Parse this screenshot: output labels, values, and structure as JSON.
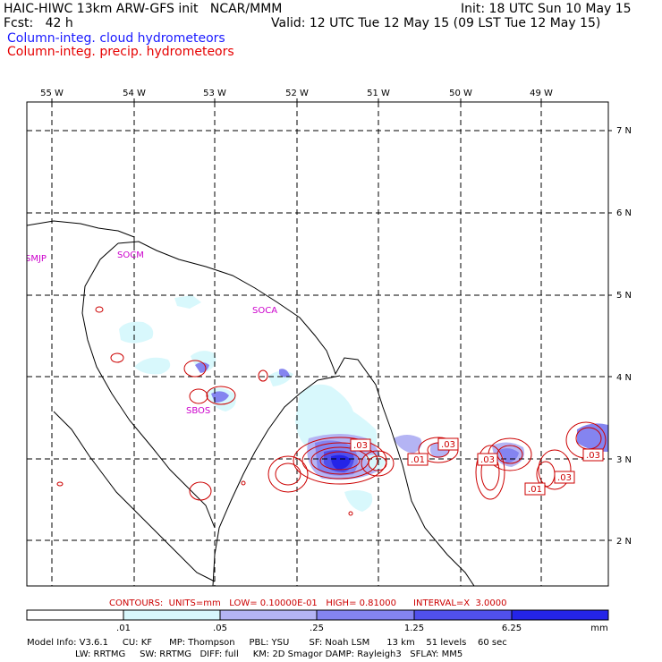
{
  "header": {
    "model_title": "HAIC-HIWC 13km ARW-GFS init   NCAR/MMM",
    "init": "Init: 18 UTC Sun 10 May 15",
    "fcst": "Fcst:   42 h",
    "valid": "Valid: 12 UTC Tue 12 May 15 (09 LST Tue 12 May 15)",
    "field_cloud": "Column-integ. cloud hydrometeors",
    "field_precip": "Column-integ. precip. hydrometeors",
    "colors": {
      "cloud": "#1a1aff",
      "precip": "#e60000"
    }
  },
  "map": {
    "lon_labels": [
      "55 W",
      "54 W",
      "53 W",
      "52 W",
      "51 W",
      "50 W",
      "49 W"
    ],
    "lat_labels": [
      "7 N",
      "6 N",
      "5 N",
      "4 N",
      "3 N",
      "2 N"
    ],
    "stations": [
      "SMJP",
      "SOCM",
      "SOCA",
      "SBOS"
    ],
    "contour_labels": [
      ".03",
      ".01",
      ".03",
      ".03",
      ".01",
      ".03",
      ".03"
    ],
    "contour_color": "#cc0000",
    "fill_colors": [
      "#d8f8fc",
      "#b4b4f4",
      "#8484f0",
      "#5050ec",
      "#2424e8"
    ]
  },
  "contours_info": "CONTOURS:  UNITS=mm   LOW= 0.10000E-01   HIGH= 0.81000      INTERVAL=X  3.0000",
  "colorbar": {
    "ticks": [
      ".01",
      ".05",
      ".25",
      "1.25",
      "6.25"
    ],
    "unit": "mm",
    "colors": [
      "#ffffff",
      "#d8f8fc",
      "#b4b4f4",
      "#8484f0",
      "#5050ec",
      "#2424e8"
    ]
  },
  "footer": {
    "line1": "Model Info: V3.6.1     CU: KF      MP: Thompson     PBL: YSU       SF: Noah LSM      13 km    51 levels    60 sec",
    "line2": "                 LW: RRTMG     SW: RRTMG   DIFF: full     KM: 2D Smagor DAMP: Rayleigh3   SFLAY: MM5"
  }
}
